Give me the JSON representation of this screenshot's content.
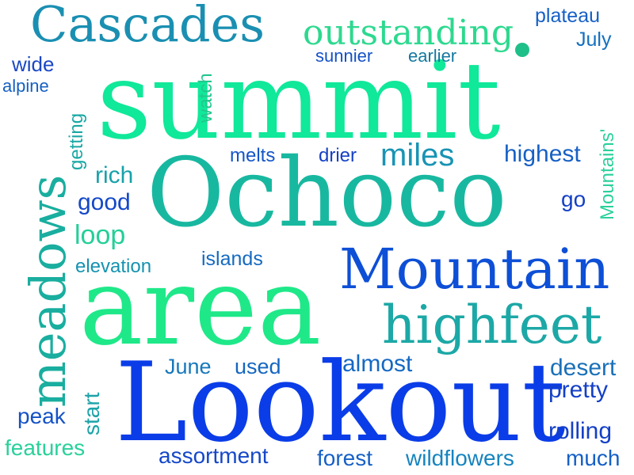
{
  "words": [
    {
      "text": "summit",
      "color": "#10e89a"
    },
    {
      "text": "Ochoco",
      "color": "#18b8a0"
    },
    {
      "text": "area",
      "color": "#1fe889"
    },
    {
      "text": "Lookout",
      "color": "#0a3de8"
    },
    {
      "text": "Mountain",
      "color": "#0d4fd6"
    },
    {
      "text": "highfeet",
      "color": "#1ca8a6"
    },
    {
      "text": "meadows",
      "color": "#19ae9f"
    },
    {
      "text": "Cascades",
      "color": "#1a8fb2"
    },
    {
      "text": "outstanding",
      "color": "#2dd98f"
    },
    {
      "text": "plateau",
      "color": "#1560c7"
    },
    {
      "text": "July",
      "color": "#1370bf"
    },
    {
      "text": "sunnier",
      "color": "#1451c6"
    },
    {
      "text": "earlier",
      "color": "#14789f"
    },
    {
      "text": "wide",
      "color": "#1a48c6"
    },
    {
      "text": "alpine",
      "color": "#1560c2"
    },
    {
      "text": "watch",
      "color": "#23c78e"
    },
    {
      "text": "getting",
      "color": "#1aa8a4"
    },
    {
      "text": "Mountains'",
      "color": "#2bd09b"
    },
    {
      "text": "melts",
      "color": "#1455c8"
    },
    {
      "text": "drier",
      "color": "#1540c5"
    },
    {
      "text": "miles",
      "color": "#1894b4"
    },
    {
      "text": "highest",
      "color": "#1760c4"
    },
    {
      "text": "rich",
      "color": "#17a2aa"
    },
    {
      "text": "good",
      "color": "#1448c8"
    },
    {
      "text": "go",
      "color": "#1440c6"
    },
    {
      "text": "loop",
      "color": "#24cf98"
    },
    {
      "text": "islands",
      "color": "#156ac0"
    },
    {
      "text": "elevation",
      "color": "#1592b0"
    },
    {
      "text": "June",
      "color": "#1778bb"
    },
    {
      "text": "used",
      "color": "#1566c0"
    },
    {
      "text": "almost",
      "color": "#1468c3"
    },
    {
      "text": "desert",
      "color": "#1a70b8"
    },
    {
      "text": "pretty",
      "color": "#1440c8"
    },
    {
      "text": "start",
      "color": "#1ca3a8"
    },
    {
      "text": "peak",
      "color": "#1452c6"
    },
    {
      "text": "features",
      "color": "#2ad19b"
    },
    {
      "text": "assortment",
      "color": "#1548c8"
    },
    {
      "text": "forest",
      "color": "#1660c6"
    },
    {
      "text": "wildflowers",
      "color": "#1684bf"
    },
    {
      "text": "much",
      "color": "#1560c6"
    },
    {
      "text": "rolling",
      "color": "#1440c6"
    }
  ]
}
